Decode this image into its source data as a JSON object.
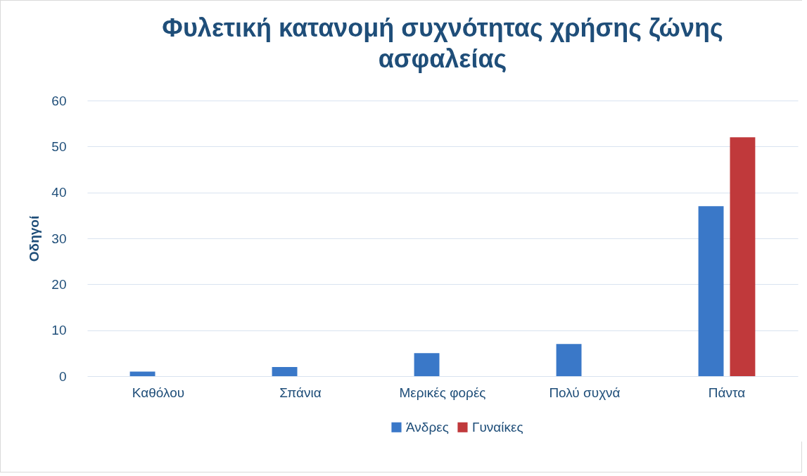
{
  "chart_data": {
    "type": "bar",
    "title": "Φυλετική κατανομή συχνότητας χρήσης ζώνης ασφαλείας",
    "ylabel": "Οδηγοί",
    "categories": [
      "Καθόλου",
      "Σπάνια",
      "Μερικές φορές",
      "Πολύ συχνά",
      "Πάντα"
    ],
    "series": [
      {
        "name": "Άνδρες",
        "color": "#3a78c8",
        "values": [
          1,
          2,
          5,
          7,
          37
        ]
      },
      {
        "name": "Γυναίκες",
        "color": "#c0393b",
        "values": [
          0,
          0,
          0,
          0,
          52
        ]
      }
    ],
    "ylim": [
      0,
      60
    ],
    "yticks": [
      0,
      10,
      20,
      30,
      40,
      50,
      60
    ],
    "grid": "y",
    "legend": "bottom"
  }
}
